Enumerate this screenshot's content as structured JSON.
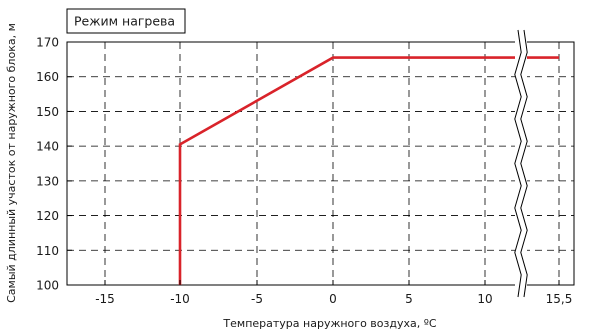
{
  "chart_data": {
    "type": "line",
    "title": "Режим нагрева",
    "xlabel": "Температура наружного воздуха, ºС",
    "ylabel": "Самый длинный участок от наружного блока, м",
    "x_ticks": [
      -15,
      -10,
      -5,
      0,
      5,
      10,
      15.5
    ],
    "x_tick_labels": [
      "-15",
      "-10",
      "-5",
      "0",
      "5",
      "10",
      "15,5"
    ],
    "y_ticks": [
      100,
      110,
      120,
      130,
      140,
      150,
      160,
      170
    ],
    "y_tick_labels": [
      "100",
      "110",
      "120",
      "130",
      "140",
      "150",
      "160",
      "170"
    ],
    "ylim": [
      100,
      170
    ],
    "axis_break_between": [
      10,
      15.5
    ],
    "grid": true,
    "series": [
      {
        "color": "#d9232a",
        "x": [
          -10,
          -10,
          0,
          15.5
        ],
        "y": [
          100,
          140.5,
          165.5,
          165.5
        ]
      }
    ]
  }
}
